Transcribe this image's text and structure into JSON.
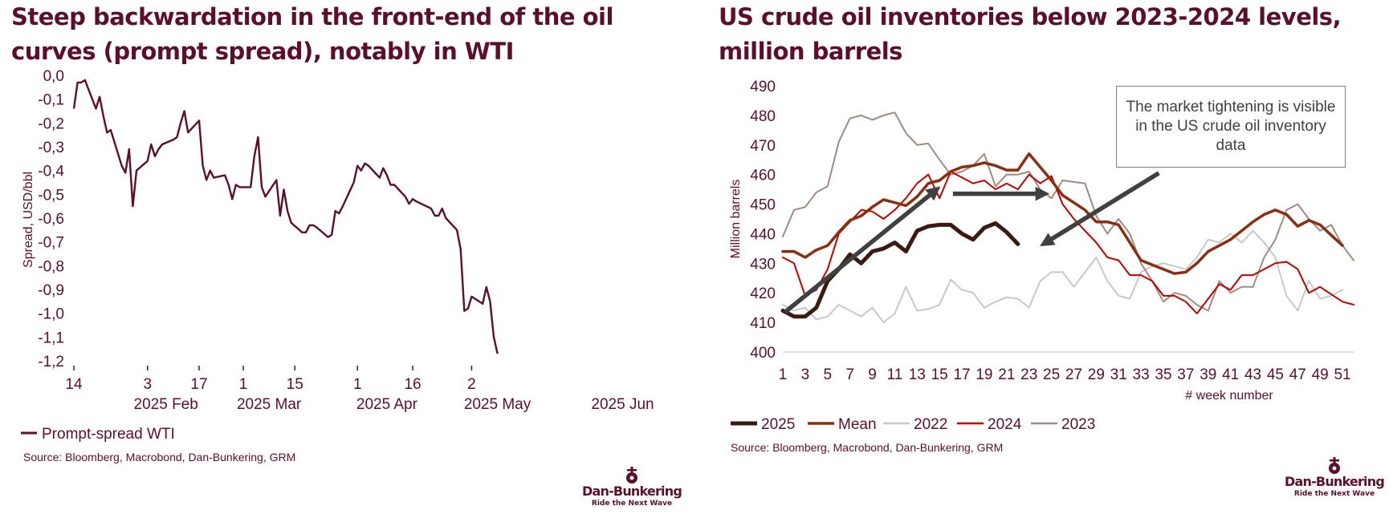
{
  "left_chart": {
    "title": "Steep backwardation in the front-end of the oil curves (prompt spread), notably in WTI",
    "source": "Source: Bloomberg, Macrobond, Dan-Bunkering, GRM",
    "chart_data": {
      "type": "line",
      "title": "Steep backwardation in the front-end of the oil curves (prompt spread), notably in WTI",
      "ylabel": "Spread, USD/bbl",
      "xlabel": "",
      "ylim": [
        -1.2,
        0.0
      ],
      "y_ticks": [
        "0,0",
        "-0,1",
        "-0,2",
        "-0,3",
        "-0,4",
        "-0,5",
        "-0,6",
        "-0,7",
        "-0,8",
        "-0,9",
        "-1,0",
        "-1,1",
        "-1,2"
      ],
      "x_day_ticks": [
        "14",
        "3",
        "17",
        "1",
        "15",
        "1",
        "16",
        "2"
      ],
      "x_month_labels": [
        "2025 Feb",
        "2025 Mar",
        "2025 Apr",
        "2025 May",
        "2025 Jun"
      ],
      "x_start_date": "2025-01-14",
      "x_end_date": "2025-06-06",
      "series": [
        {
          "name": "Prompt-spread WTI",
          "color": "#5c0e2a",
          "points": [
            {
              "date": "2025-01-14",
              "value": -0.14
            },
            {
              "date": "2025-01-15",
              "value": -0.03
            },
            {
              "date": "2025-01-16",
              "value": -0.03
            },
            {
              "date": "2025-01-17",
              "value": -0.02
            },
            {
              "date": "2025-01-20",
              "value": -0.14
            },
            {
              "date": "2025-01-21",
              "value": -0.09
            },
            {
              "date": "2025-01-22",
              "value": -0.17
            },
            {
              "date": "2025-01-23",
              "value": -0.24
            },
            {
              "date": "2025-01-24",
              "value": -0.23
            },
            {
              "date": "2025-01-27",
              "value": -0.38
            },
            {
              "date": "2025-01-28",
              "value": -0.41
            },
            {
              "date": "2025-01-29",
              "value": -0.31
            },
            {
              "date": "2025-01-30",
              "value": -0.55
            },
            {
              "date": "2025-01-31",
              "value": -0.4
            },
            {
              "date": "2025-02-03",
              "value": -0.36
            },
            {
              "date": "2025-02-04",
              "value": -0.29
            },
            {
              "date": "2025-02-05",
              "value": -0.34
            },
            {
              "date": "2025-02-06",
              "value": -0.31
            },
            {
              "date": "2025-02-07",
              "value": -0.29
            },
            {
              "date": "2025-02-10",
              "value": -0.27
            },
            {
              "date": "2025-02-11",
              "value": -0.26
            },
            {
              "date": "2025-02-12",
              "value": -0.2
            },
            {
              "date": "2025-02-13",
              "value": -0.15
            },
            {
              "date": "2025-02-14",
              "value": -0.24
            },
            {
              "date": "2025-02-17",
              "value": -0.19
            },
            {
              "date": "2025-02-18",
              "value": -0.38
            },
            {
              "date": "2025-02-19",
              "value": -0.44
            },
            {
              "date": "2025-02-20",
              "value": -0.4
            },
            {
              "date": "2025-02-21",
              "value": -0.43
            },
            {
              "date": "2025-02-24",
              "value": -0.42
            },
            {
              "date": "2025-02-25",
              "value": -0.46
            },
            {
              "date": "2025-02-26",
              "value": -0.52
            },
            {
              "date": "2025-02-27",
              "value": -0.46
            },
            {
              "date": "2025-02-28",
              "value": -0.47
            },
            {
              "date": "2025-03-03",
              "value": -0.47
            },
            {
              "date": "2025-03-04",
              "value": -0.34
            },
            {
              "date": "2025-03-05",
              "value": -0.26
            },
            {
              "date": "2025-03-06",
              "value": -0.47
            },
            {
              "date": "2025-03-07",
              "value": -0.51
            },
            {
              "date": "2025-03-10",
              "value": -0.44
            },
            {
              "date": "2025-03-11",
              "value": -0.59
            },
            {
              "date": "2025-03-12",
              "value": -0.48
            },
            {
              "date": "2025-03-13",
              "value": -0.57
            },
            {
              "date": "2025-03-14",
              "value": -0.62
            },
            {
              "date": "2025-03-17",
              "value": -0.66
            },
            {
              "date": "2025-03-18",
              "value": -0.66
            },
            {
              "date": "2025-03-19",
              "value": -0.63
            },
            {
              "date": "2025-03-20",
              "value": -0.63
            },
            {
              "date": "2025-03-21",
              "value": -0.64
            },
            {
              "date": "2025-03-24",
              "value": -0.68
            },
            {
              "date": "2025-03-25",
              "value": -0.67
            },
            {
              "date": "2025-03-26",
              "value": -0.57
            },
            {
              "date": "2025-03-27",
              "value": -0.58
            },
            {
              "date": "2025-03-28",
              "value": -0.55
            },
            {
              "date": "2025-03-31",
              "value": -0.45
            },
            {
              "date": "2025-04-01",
              "value": -0.38
            },
            {
              "date": "2025-04-02",
              "value": -0.4
            },
            {
              "date": "2025-04-03",
              "value": -0.37
            },
            {
              "date": "2025-04-04",
              "value": -0.38
            },
            {
              "date": "2025-04-07",
              "value": -0.43
            },
            {
              "date": "2025-04-08",
              "value": -0.39
            },
            {
              "date": "2025-04-09",
              "value": -0.42
            },
            {
              "date": "2025-04-10",
              "value": -0.46
            },
            {
              "date": "2025-04-11",
              "value": -0.46
            },
            {
              "date": "2025-04-14",
              "value": -0.51
            },
            {
              "date": "2025-04-15",
              "value": -0.54
            },
            {
              "date": "2025-04-16",
              "value": -0.52
            },
            {
              "date": "2025-04-17",
              "value": -0.53
            },
            {
              "date": "2025-04-21",
              "value": -0.56
            },
            {
              "date": "2025-04-22",
              "value": -0.59
            },
            {
              "date": "2025-04-23",
              "value": -0.59
            },
            {
              "date": "2025-04-24",
              "value": -0.56
            },
            {
              "date": "2025-04-25",
              "value": -0.6
            },
            {
              "date": "2025-04-28",
              "value": -0.65
            },
            {
              "date": "2025-04-29",
              "value": -0.73
            },
            {
              "date": "2025-04-30",
              "value": -0.99
            },
            {
              "date": "2025-05-01",
              "value": -0.98
            },
            {
              "date": "2025-05-02",
              "value": -0.93
            },
            {
              "date": "2025-05-05",
              "value": -0.96
            },
            {
              "date": "2025-05-06",
              "value": -0.89
            },
            {
              "date": "2025-05-07",
              "value": -0.95
            },
            {
              "date": "2025-05-08",
              "value": -1.1
            },
            {
              "date": "2025-05-09",
              "value": -1.17
            }
          ]
        }
      ],
      "legend": "bottom-left"
    }
  },
  "right_chart": {
    "title": "US crude oil inventories below 2023-2024 levels, million barrels",
    "source": "Source: Bloomberg, Macrobond, Dan-Bunkering, GRM",
    "annotation": "The market tightening is visible in the US crude oil inventory data",
    "chart_data": {
      "type": "line",
      "title": "US crude oil inventories below 2023-2024 levels, million barrels",
      "ylabel": "Million barrels",
      "xlabel": "# week number",
      "ylim": [
        400,
        490
      ],
      "xlim": [
        1,
        52
      ],
      "y_ticks": [
        "490",
        "480",
        "470",
        "460",
        "450",
        "440",
        "430",
        "420",
        "410",
        "400"
      ],
      "x_ticks": [
        "1",
        "3",
        "5",
        "7",
        "9",
        "11",
        "13",
        "15",
        "17",
        "19",
        "21",
        "23",
        "25",
        "27",
        "29",
        "31",
        "33",
        "35",
        "37",
        "39",
        "41",
        "43",
        "45",
        "47",
        "49",
        "51"
      ],
      "series": [
        {
          "name": "2025",
          "color": "#3b1a12",
          "width": 5,
          "values": [
            414,
            412,
            412,
            415,
            424,
            428,
            433,
            430,
            434,
            435,
            437,
            434,
            441,
            442.5,
            443,
            443,
            440,
            438,
            442,
            443.5,
            440.5,
            436.5
          ]
        },
        {
          "name": "Mean",
          "color": "#8b2e0f",
          "width": 3.5,
          "values": [
            434,
            434,
            432,
            434.5,
            436,
            440.5,
            444.5,
            446,
            449,
            451.5,
            450.5,
            449.5,
            452.5,
            457,
            458,
            461,
            462.5,
            463,
            464,
            463,
            461.5,
            461.5,
            467,
            462.5,
            458,
            453,
            450.5,
            448,
            444,
            444,
            443,
            437,
            431,
            429.5,
            428,
            426.5,
            427,
            430,
            434,
            436,
            438,
            441,
            444,
            446.5,
            448,
            446.5,
            442.5,
            444.5,
            443,
            439.5,
            436
          ]
        },
        {
          "name": "2022",
          "color": "#c8c8c8",
          "width": 2,
          "values": [
            416,
            414,
            415,
            411,
            412,
            416,
            414,
            412,
            415,
            410,
            413,
            422,
            414,
            414.5,
            416,
            424.5,
            421,
            420,
            415,
            417,
            418.5,
            418,
            415,
            424,
            427,
            427,
            422,
            427,
            432,
            424,
            419,
            418,
            427,
            429,
            430,
            429,
            428,
            432,
            438,
            437,
            440,
            437,
            441,
            437,
            432,
            419,
            414,
            424,
            418,
            419,
            421
          ]
        },
        {
          "name": "2024",
          "color": "#c00000",
          "width": 2,
          "values": [
            432,
            430,
            419,
            421,
            428,
            440,
            444,
            448,
            447.5,
            445,
            448,
            452,
            457,
            460,
            452,
            461,
            459,
            457,
            458,
            455,
            457,
            455,
            460,
            457,
            459.5,
            450,
            445,
            441,
            437,
            432,
            431,
            426,
            426,
            424,
            419,
            419,
            417,
            413,
            418,
            423,
            421,
            426,
            426,
            428,
            430,
            430.5,
            428,
            420,
            422,
            419.5,
            417,
            416
          ]
        },
        {
          "name": "2023",
          "color": "#9e8b81",
          "width": 2,
          "values": [
            439,
            448,
            449,
            454,
            456,
            471,
            479,
            480,
            478.5,
            480,
            481,
            474,
            470,
            470.5,
            465,
            460,
            461,
            463,
            467,
            456,
            460,
            460,
            461,
            455,
            452,
            458,
            457.5,
            457,
            446,
            440,
            445,
            440,
            430,
            424,
            417,
            420,
            419,
            416,
            414,
            424,
            420,
            422,
            422,
            432,
            438,
            448,
            450,
            445,
            441,
            443,
            436,
            431
          ]
        }
      ],
      "legend": "bottom-left"
    }
  },
  "logo": {
    "name": "Dan-Bunkering",
    "tagline": "Ride the Next Wave"
  },
  "colors": {
    "brand": "#5c0e2a",
    "arrow": "#404040"
  }
}
